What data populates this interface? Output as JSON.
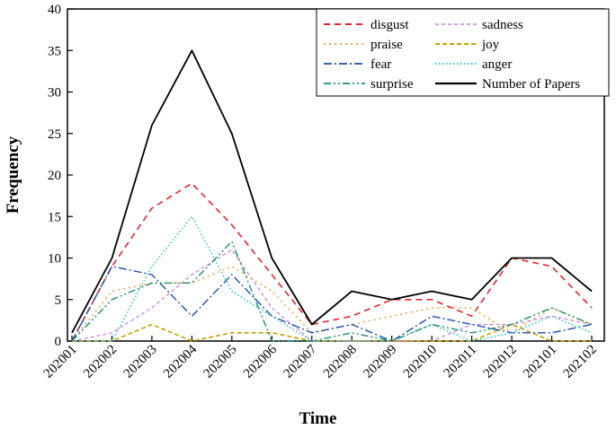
{
  "chart_data": {
    "type": "line",
    "title": "",
    "xlabel": "Time",
    "ylabel": "Frequency",
    "ylim": [
      0,
      40
    ],
    "yticks": [
      0,
      5,
      10,
      15,
      20,
      25,
      30,
      35,
      40
    ],
    "grid": false,
    "legend_position": "top-right",
    "categories": [
      "202001",
      "202002",
      "202003",
      "202004",
      "202005",
      "202006",
      "202007",
      "202008",
      "202009",
      "202010",
      "202011",
      "202012",
      "202101",
      "202102"
    ],
    "series": [
      {
        "name": "disgust",
        "color": "#e0262b",
        "dash": "dashed",
        "values": [
          0,
          9,
          16,
          19,
          14,
          8,
          2,
          3,
          5,
          5,
          3,
          10,
          9,
          4
        ]
      },
      {
        "name": "sadness",
        "color": "#c77be6",
        "dash": "dashed-fine",
        "values": [
          0,
          1,
          4,
          8,
          11,
          4,
          0,
          0,
          0,
          0,
          2,
          2,
          3,
          2
        ]
      },
      {
        "name": "praise",
        "color": "#e8a84c",
        "dash": "dotted",
        "values": [
          0,
          6,
          7,
          7,
          9,
          6,
          1,
          2,
          3,
          4,
          4,
          1,
          4,
          2
        ]
      },
      {
        "name": "joy",
        "color": "#c8a000",
        "dash": "dashed-short",
        "values": [
          0,
          0,
          2,
          0,
          1,
          1,
          0,
          0,
          0,
          0,
          0,
          2,
          0,
          0
        ]
      },
      {
        "name": "fear",
        "color": "#1b4fb0",
        "dash": "dashdot",
        "values": [
          0,
          9,
          8,
          3,
          8,
          3,
          1,
          2,
          0,
          3,
          2,
          1,
          1,
          2
        ]
      },
      {
        "name": "anger",
        "color": "#2ec5d0",
        "dash": "dotted-fine",
        "values": [
          0,
          0,
          9,
          15,
          6,
          3,
          0,
          0,
          0,
          2,
          0,
          1,
          3,
          1
        ]
      },
      {
        "name": "surprise",
        "color": "#1a8f6a",
        "dash": "dashdotdot",
        "values": [
          0,
          5,
          7,
          7,
          12,
          0,
          0,
          1,
          0,
          2,
          1,
          2,
          4,
          2
        ]
      },
      {
        "name": "Number of Papers",
        "color": "#000000",
        "dash": "solid",
        "values": [
          1,
          10,
          26,
          35,
          25,
          10,
          2,
          6,
          5,
          6,
          5,
          10,
          10,
          6
        ]
      }
    ]
  }
}
